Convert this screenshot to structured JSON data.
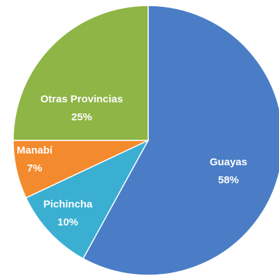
{
  "chart_data": {
    "type": "pie",
    "categories": [
      "Guayas",
      "Pichincha",
      "Manabí",
      "Otras Provincias"
    ],
    "values": [
      58,
      10,
      7,
      25
    ],
    "value_labels": [
      "58%",
      "10%",
      "7%",
      "25%"
    ],
    "colors": [
      "#4a7dc6",
      "#3aafd2",
      "#f38b2e",
      "#8fb546"
    ]
  }
}
